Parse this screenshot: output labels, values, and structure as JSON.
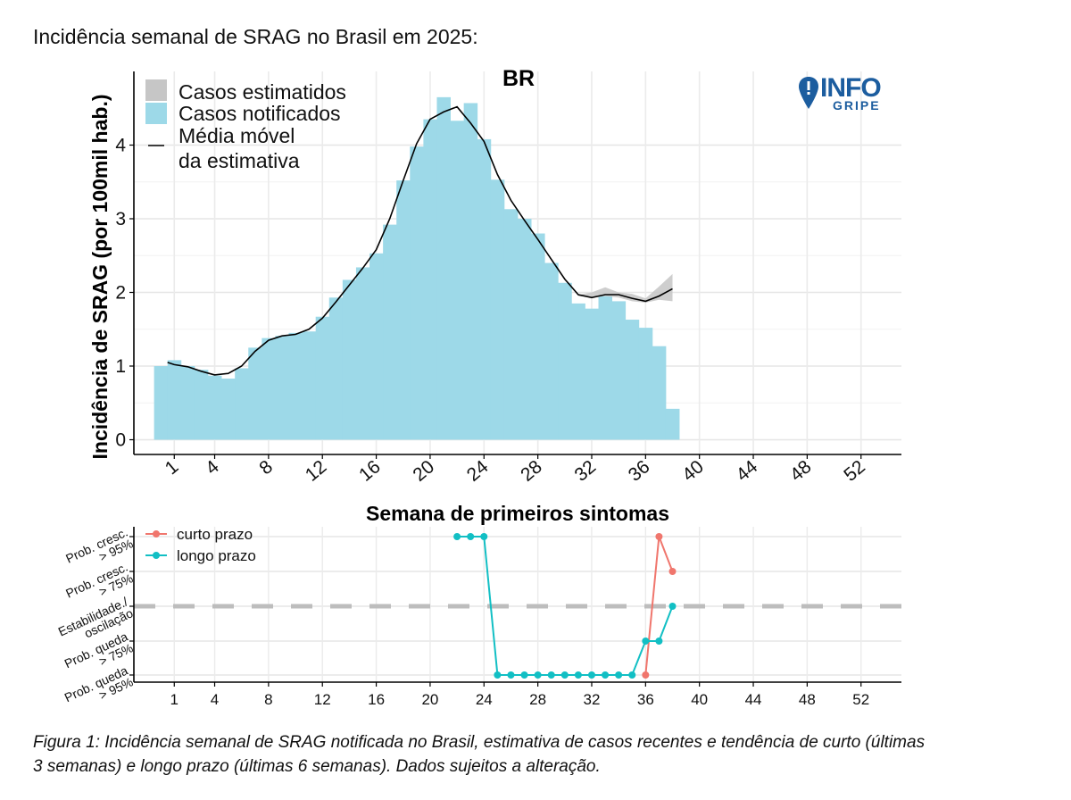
{
  "page": {
    "title": "Incidência semanal de SRAG no Brasil em 2025:",
    "caption": "Figura 1: Incidência semanal de SRAG notificada no Brasil, estimativa de casos recentes e tendência de curto (últimas 3 semanas) e longo prazo (últimas 6 semanas). Dados sujeitos a alteração."
  },
  "logo": {
    "text_top": "INFO",
    "text_bottom": "GRIPE"
  },
  "colors": {
    "notified": "#9dd9e8",
    "estimated": "#c6c6c6",
    "moving_avg": "#000000",
    "short_term": "#f0766d",
    "long_term": "#12bfc4",
    "logo": "#1c5d9f"
  },
  "chart_data": [
    {
      "type": "bar",
      "title": "BR",
      "xlabel": "Semana de primeiros sintomas",
      "ylabel": "Incidência de SRAG (por 100mil hab.)",
      "xlim": [
        -2,
        55
      ],
      "ylim": [
        -0.2,
        5.0
      ],
      "x_ticks": [
        1,
        4,
        8,
        12,
        16,
        20,
        24,
        28,
        32,
        36,
        40,
        44,
        48,
        52
      ],
      "y_ticks": [
        0,
        1,
        2,
        3,
        4
      ],
      "grid": true,
      "legend_position": "top-left",
      "legend": [
        "Casos estimatidos",
        "Casos notificados",
        "Média móvel",
        "da estimativa"
      ],
      "weeks": [
        0,
        1,
        2,
        3,
        4,
        5,
        6,
        7,
        8,
        9,
        10,
        11,
        12,
        13,
        14,
        15,
        16,
        17,
        18,
        19,
        20,
        21,
        22,
        23,
        24,
        25,
        26,
        27,
        28,
        29,
        30,
        31,
        32,
        33,
        34,
        35,
        36,
        37,
        38
      ],
      "notified": [
        1.0,
        1.08,
        1.0,
        0.95,
        0.87,
        0.83,
        0.97,
        1.25,
        1.38,
        1.41,
        1.45,
        1.47,
        1.67,
        1.93,
        2.17,
        2.34,
        2.53,
        2.92,
        3.52,
        3.98,
        4.35,
        4.65,
        4.33,
        4.57,
        4.08,
        3.53,
        3.13,
        3.0,
        2.8,
        2.4,
        2.13,
        1.85,
        1.78,
        1.95,
        1.88,
        1.63,
        1.52,
        1.27,
        0.42
      ],
      "moving_average": {
        "x": [
          0.5,
          1,
          2,
          3,
          4,
          5,
          6,
          7,
          8,
          9,
          10,
          11,
          12,
          13,
          14,
          15,
          16,
          17,
          18,
          19,
          20,
          21,
          22,
          23,
          24,
          25,
          26,
          27,
          28,
          29,
          30,
          31,
          32,
          33,
          34,
          35,
          36,
          37,
          38
        ],
        "y": [
          1.05,
          1.02,
          0.99,
          0.93,
          0.88,
          0.9,
          1.0,
          1.2,
          1.35,
          1.41,
          1.43,
          1.5,
          1.65,
          1.87,
          2.1,
          2.33,
          2.58,
          3.0,
          3.52,
          4.02,
          4.35,
          4.45,
          4.52,
          4.3,
          4.05,
          3.6,
          3.25,
          2.98,
          2.72,
          2.45,
          2.18,
          1.97,
          1.93,
          1.97,
          1.97,
          1.92,
          1.88,
          1.95,
          2.05
        ]
      },
      "estimate_band": {
        "x": [
          31,
          32,
          33,
          34,
          35,
          36,
          37,
          38
        ],
        "low": [
          1.95,
          1.93,
          1.95,
          1.93,
          1.88,
          1.86,
          1.9,
          1.88
        ],
        "high": [
          1.97,
          2.0,
          2.07,
          2.0,
          1.98,
          1.92,
          2.08,
          2.25
        ]
      }
    },
    {
      "type": "line",
      "xlabel": "",
      "ylabel": "",
      "xlim": [
        -2,
        55
      ],
      "x_ticks": [
        1,
        4,
        8,
        12,
        16,
        20,
        24,
        28,
        32,
        36,
        40,
        44,
        48,
        52
      ],
      "y_categories": [
        "Prob. queda > 95%",
        "Prob. queda > 75%",
        "Estabilidade./ oscilação",
        "Prob. cresc. > 75%",
        "Prob. cresc. > 95%"
      ],
      "y_category_lines": [
        [
          "Prob. queda",
          "> 95%"
        ],
        [
          "Prob. queda",
          "> 75%"
        ],
        [
          "Estabilidade./",
          "oscilação"
        ],
        [
          "Prob. cresc.",
          "> 75%"
        ],
        [
          "Prob. cresc.",
          "> 95%"
        ]
      ],
      "y_values_meaning": "-2 = Prob. queda > 95%, -1 = Prob. queda > 75%, 0 = Estabilidade./oscilação, 1 = Prob. cresc. > 75%, 2 = Prob. cresc. > 95%",
      "legend_position": "top-left",
      "series": [
        {
          "name": "curto prazo",
          "x": [
            36,
            37,
            38
          ],
          "y": [
            -2,
            2,
            1
          ]
        },
        {
          "name": "longo prazo",
          "x": [
            22,
            23,
            24,
            25,
            26,
            27,
            28,
            29,
            30,
            31,
            32,
            33,
            34,
            35,
            36,
            37,
            38
          ],
          "y": [
            2,
            2,
            2,
            -2,
            -2,
            -2,
            -2,
            -2,
            -2,
            -2,
            -2,
            -2,
            -2,
            -2,
            -1,
            -1,
            0
          ]
        }
      ]
    }
  ]
}
